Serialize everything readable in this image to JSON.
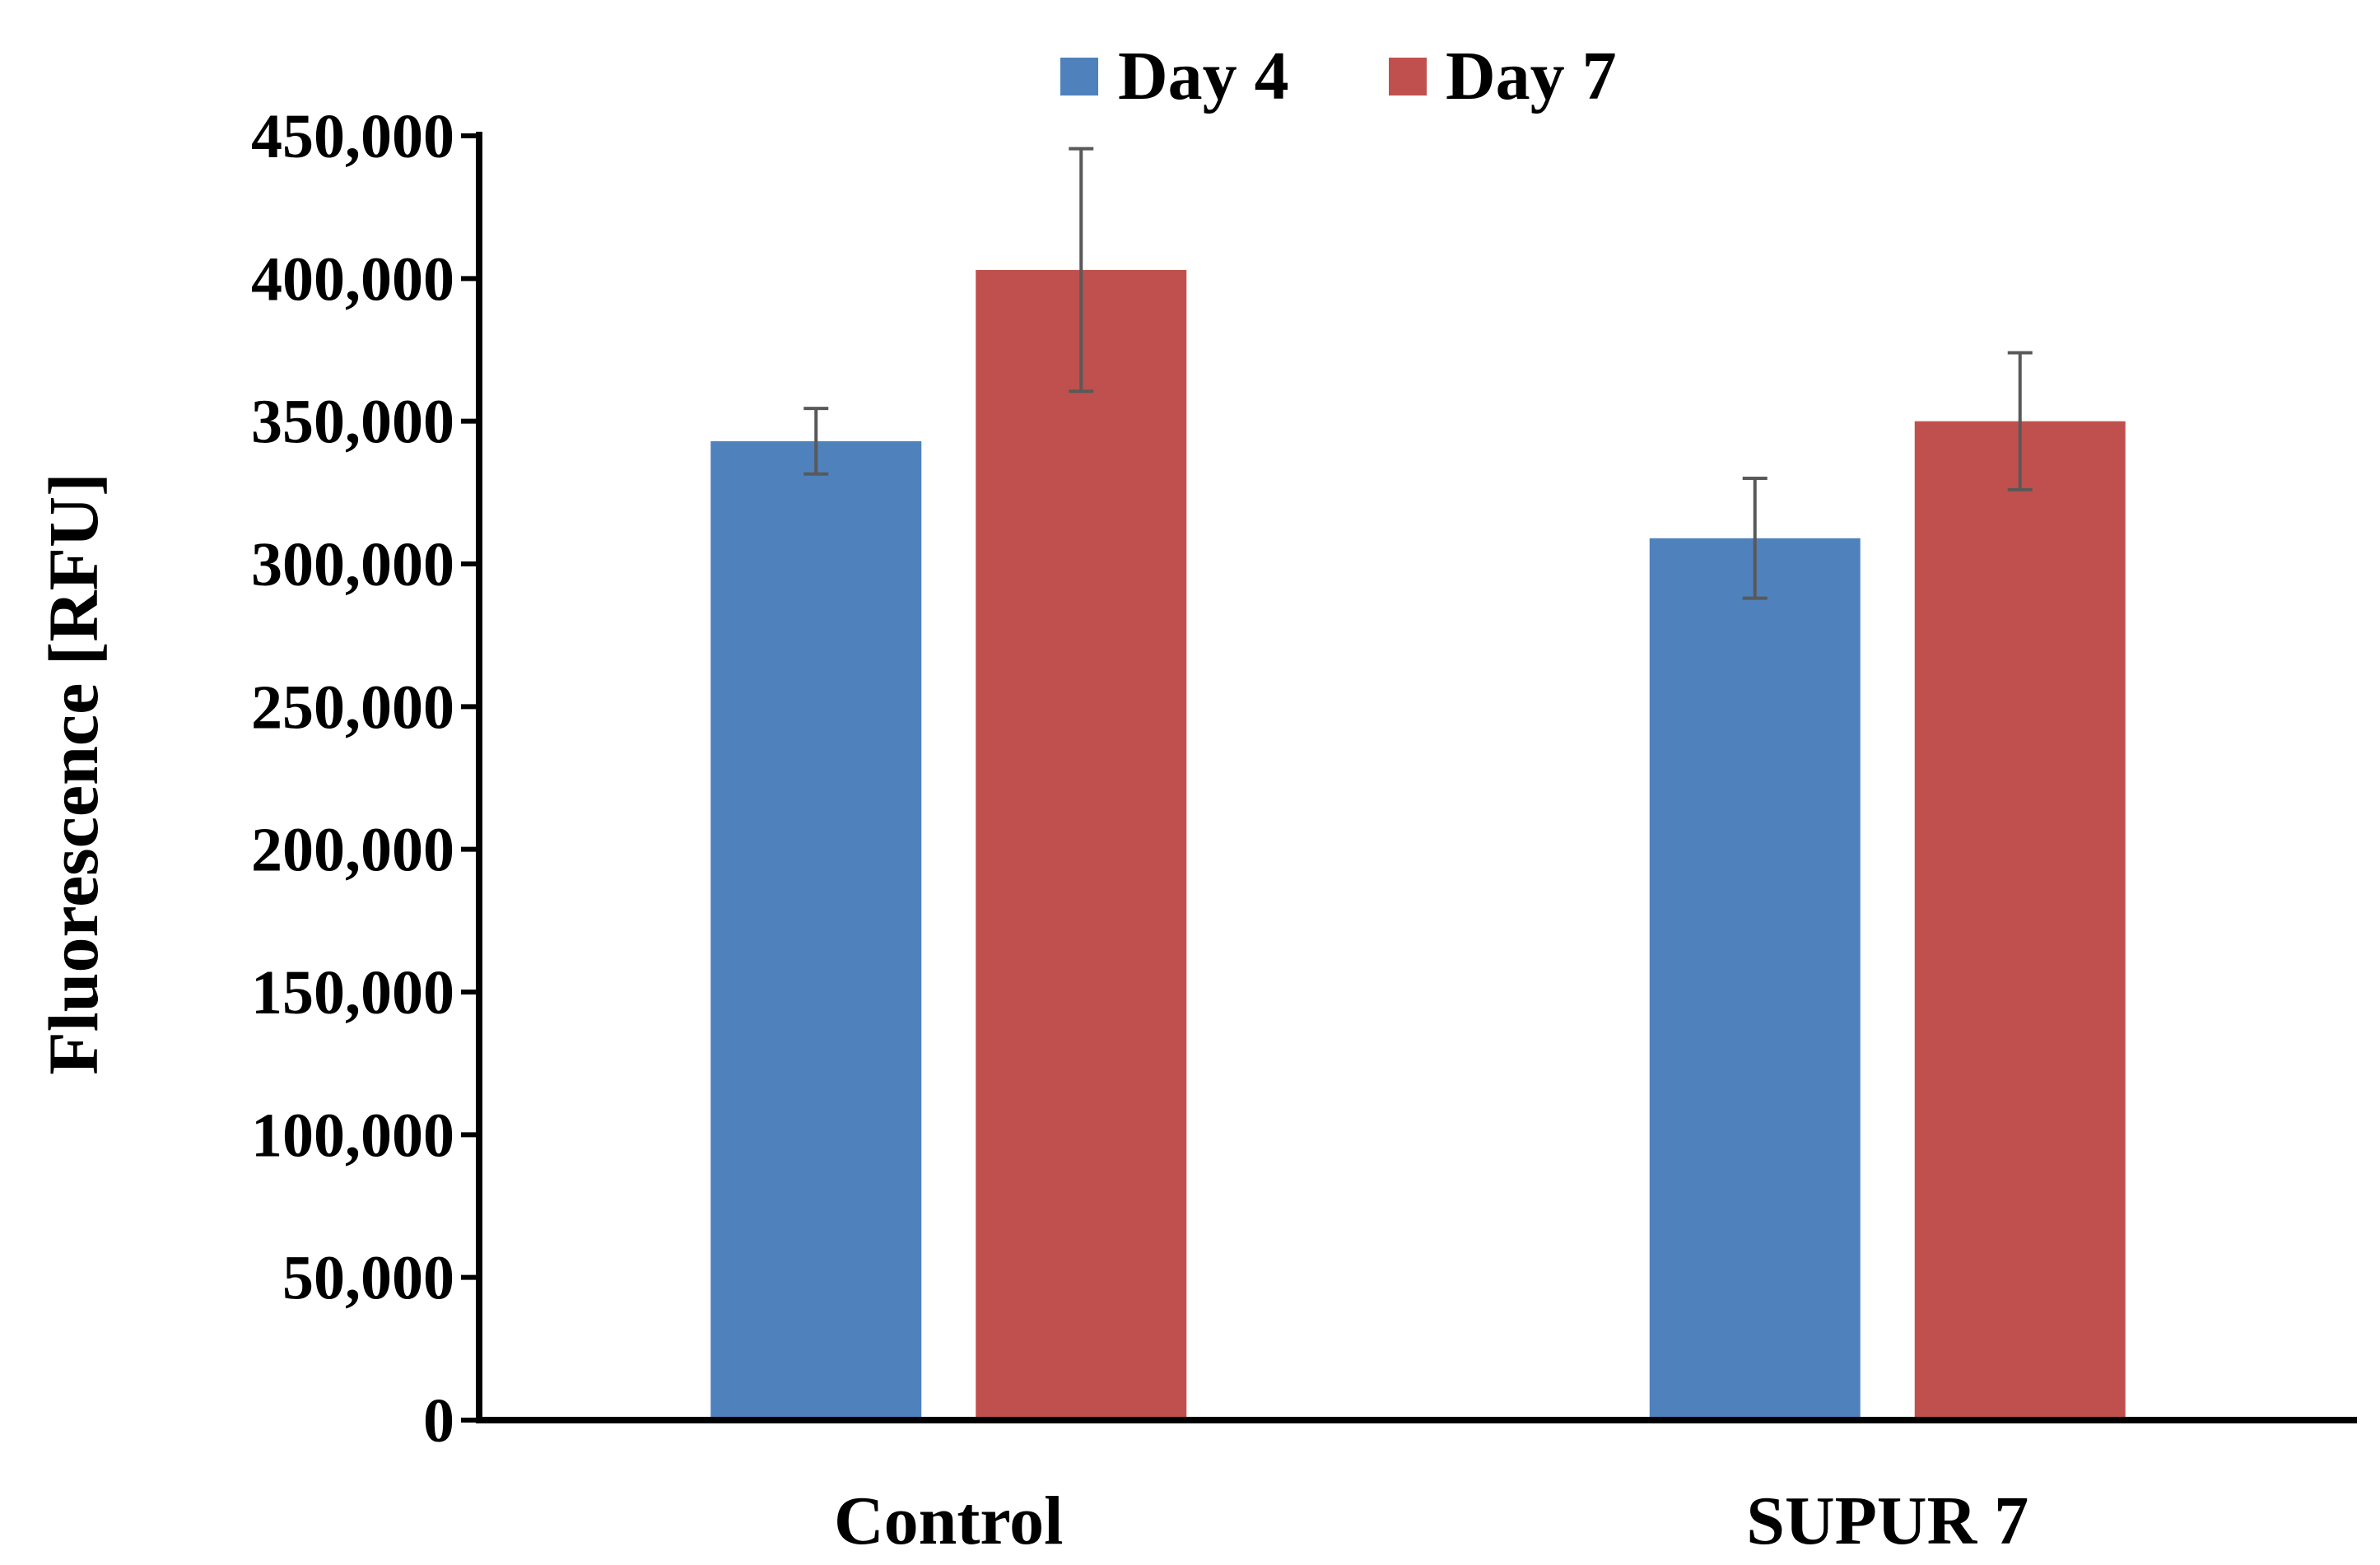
{
  "chart_data": {
    "type": "bar",
    "title": "",
    "xlabel": "",
    "ylabel": "Fluorescence [RFU]",
    "ylim": [
      0,
      450000
    ],
    "yticks": [
      0,
      50000,
      100000,
      150000,
      200000,
      250000,
      300000,
      350000,
      400000,
      450000
    ],
    "ytick_labels": [
      "0",
      "50,000",
      "100,000",
      "150,000",
      "200,000",
      "250,000",
      "300,000",
      "350,000",
      "400,000",
      "450,000"
    ],
    "categories": [
      "Control",
      "SUPUR 7"
    ],
    "series": [
      {
        "name": "Day 4",
        "color": "#4F81BD",
        "values": [
          343000,
          309000
        ],
        "errors": [
          11500,
          21000
        ]
      },
      {
        "name": "Day 7",
        "color": "#C0504D",
        "values": [
          403000,
          350000
        ],
        "errors": [
          42500,
          24000
        ]
      }
    ],
    "legend_position": "top",
    "grid": false,
    "error_bar_color": "#595959"
  }
}
